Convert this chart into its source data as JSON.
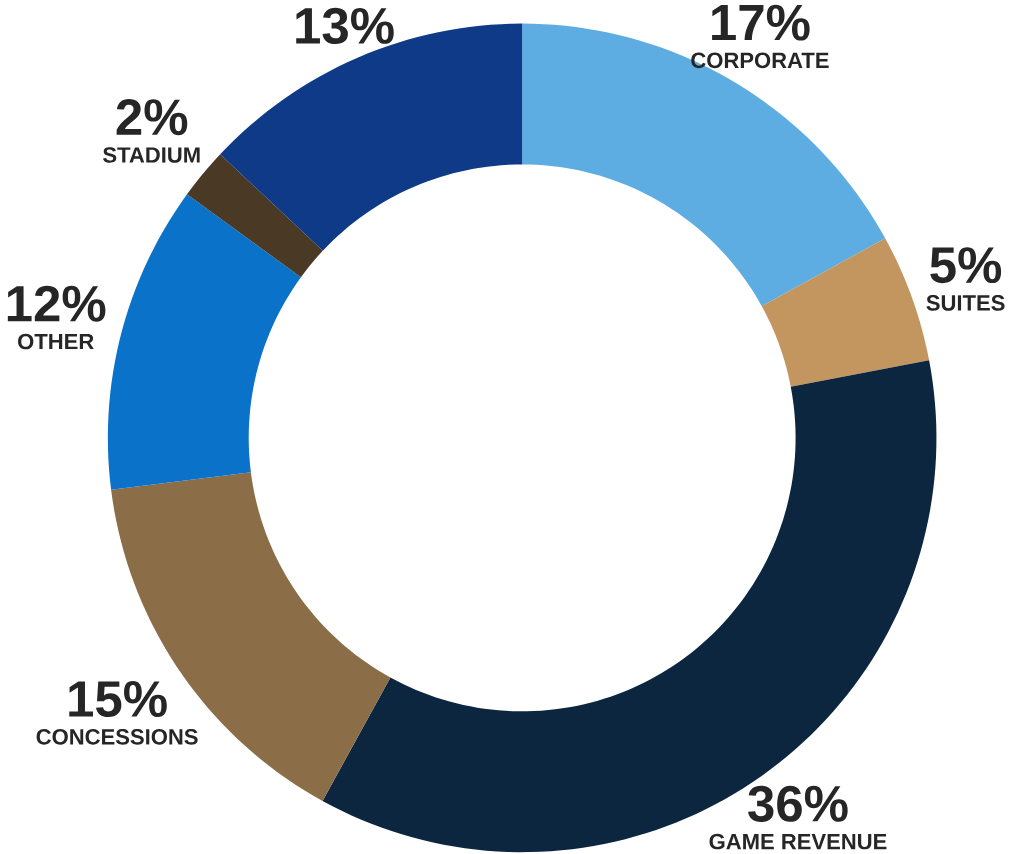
{
  "chart_data": {
    "type": "donut",
    "categories": [
      "CORPORATE",
      "SUITES",
      "GAME REVENUE",
      "CONCESSIONS",
      "OTHER",
      "STADIUM",
      null
    ],
    "values": [
      17,
      5,
      36,
      15,
      12,
      2,
      13
    ],
    "colors": [
      "#5dade2",
      "#c4965f",
      "#0d2640",
      "#8b6e48",
      "#0a72c8",
      "#4a3a25",
      "#0f3a88"
    ],
    "value_labels": [
      "17%",
      "5%",
      "36%",
      "15%",
      "12%",
      "2%",
      "13%"
    ]
  }
}
